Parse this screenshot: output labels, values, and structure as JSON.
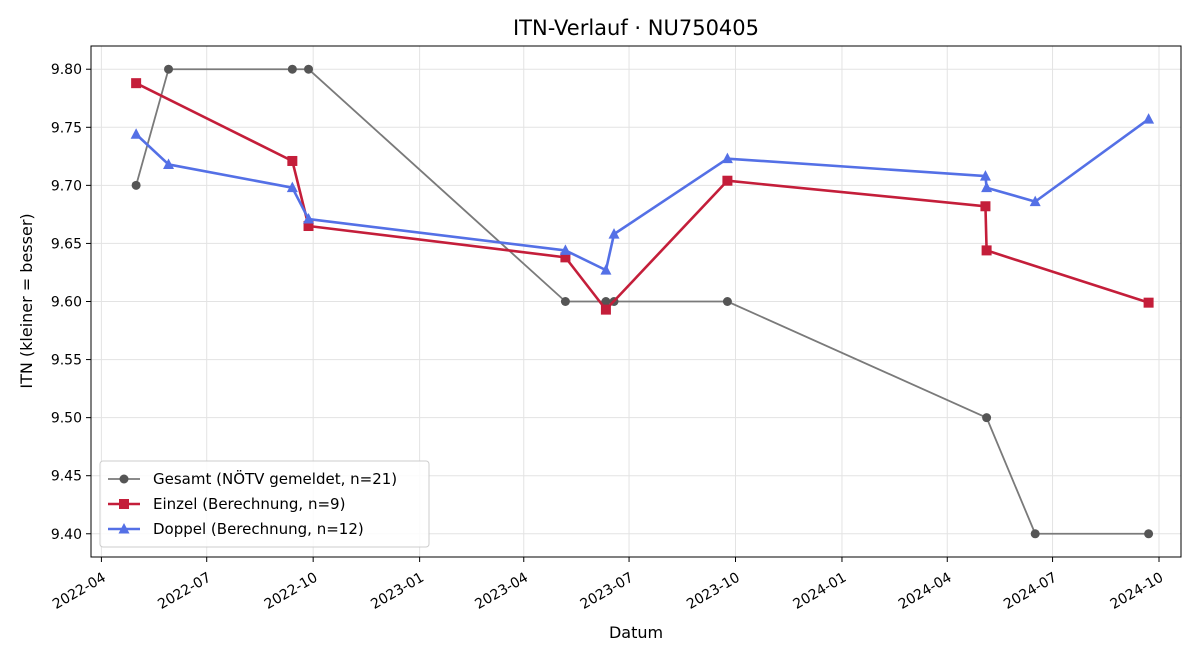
{
  "chart_data": {
    "type": "line",
    "title": "ITN-Verlauf · NU750405",
    "xlabel": "Datum",
    "ylabel": "ITN  (kleiner = besser)",
    "xlim": [
      "2022-03-23",
      "2024-10-20"
    ],
    "ylim": [
      9.38,
      9.82
    ],
    "x_ticks": [
      "2022-04-01",
      "2022-07-01",
      "2022-10-01",
      "2023-01-01",
      "2023-04-01",
      "2023-07-01",
      "2023-10-01",
      "2024-01-01",
      "2024-04-01",
      "2024-07-01",
      "2024-10-01"
    ],
    "x_tick_labels": [
      "2022-04",
      "2022-07",
      "2022-10",
      "2023-01",
      "2023-04",
      "2023-07",
      "2023-10",
      "2024-01",
      "2024-04",
      "2024-07",
      "2024-10"
    ],
    "y_ticks": [
      9.4,
      9.45,
      9.5,
      9.55,
      9.6,
      9.65,
      9.7,
      9.75,
      9.8
    ],
    "y_tick_labels": [
      "9.40",
      "9.45",
      "9.50",
      "9.55",
      "9.60",
      "9.65",
      "9.70",
      "9.75",
      "9.80"
    ],
    "grid": true,
    "legend_position": "lower-left",
    "series": [
      {
        "name": "Gesamt (NÖTV gemeldet, n=21)",
        "color": "#555555",
        "line_color": "#7a7a7a",
        "marker": "circle",
        "points": [
          {
            "x": "2022-05-01",
            "y": 9.7
          },
          {
            "x": "2022-05-29",
            "y": 9.8
          },
          {
            "x": "2022-09-13",
            "y": 9.8
          },
          {
            "x": "2022-09-27",
            "y": 9.8
          },
          {
            "x": "2023-05-07",
            "y": 9.6
          },
          {
            "x": "2023-06-11",
            "y": 9.6
          },
          {
            "x": "2023-06-18",
            "y": 9.6
          },
          {
            "x": "2023-09-24",
            "y": 9.6
          },
          {
            "x": "2024-05-05",
            "y": 9.5
          },
          {
            "x": "2024-06-16",
            "y": 9.4
          },
          {
            "x": "2024-09-22",
            "y": 9.4
          }
        ]
      },
      {
        "name": "Einzel (Berechnung, n=9)",
        "color": "#c41e3a",
        "line_color": "#c41e3a",
        "marker": "square",
        "points": [
          {
            "x": "2022-05-01",
            "y": 9.788
          },
          {
            "x": "2022-09-13",
            "y": 9.721
          },
          {
            "x": "2022-09-27",
            "y": 9.665
          },
          {
            "x": "2023-05-07",
            "y": 9.638
          },
          {
            "x": "2023-06-11",
            "y": 9.593
          },
          {
            "x": "2023-09-24",
            "y": 9.704
          },
          {
            "x": "2024-05-04",
            "y": 9.682
          },
          {
            "x": "2024-05-05",
            "y": 9.644
          },
          {
            "x": "2024-09-22",
            "y": 9.599
          }
        ]
      },
      {
        "name": "Doppel (Berechnung, n=12)",
        "color": "#5470e6",
        "line_color": "#5470e6",
        "marker": "triangle",
        "points": [
          {
            "x": "2022-05-01",
            "y": 9.744
          },
          {
            "x": "2022-05-29",
            "y": 9.718
          },
          {
            "x": "2022-09-13",
            "y": 9.698
          },
          {
            "x": "2022-09-27",
            "y": 9.671
          },
          {
            "x": "2023-05-07",
            "y": 9.644
          },
          {
            "x": "2023-06-11",
            "y": 9.627
          },
          {
            "x": "2023-06-18",
            "y": 9.658
          },
          {
            "x": "2023-09-24",
            "y": 9.723
          },
          {
            "x": "2024-05-04",
            "y": 9.708
          },
          {
            "x": "2024-05-05",
            "y": 9.698
          },
          {
            "x": "2024-06-16",
            "y": 9.686
          },
          {
            "x": "2024-09-22",
            "y": 9.757
          }
        ]
      }
    ]
  }
}
